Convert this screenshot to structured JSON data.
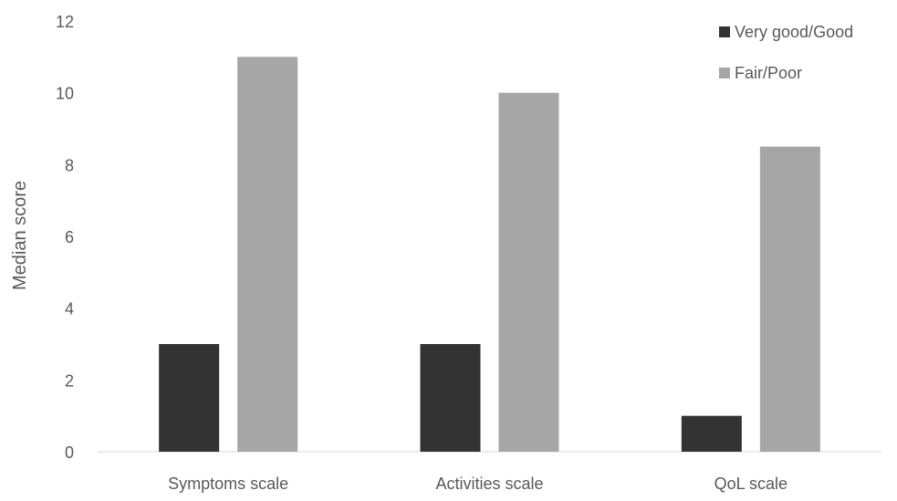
{
  "chart_data": {
    "type": "bar",
    "title": "",
    "xlabel": "",
    "ylabel": "Median score",
    "categories": [
      "Symptoms scale",
      "Activities scale",
      "QoL scale"
    ],
    "series": [
      {
        "name": "Very good/Good",
        "color": "#333333",
        "values": [
          3,
          3,
          1
        ]
      },
      {
        "name": "Fair/Poor",
        "color": "#a6a6a6",
        "values": [
          11,
          10,
          8.5
        ]
      }
    ],
    "ylim": [
      0,
      12
    ],
    "yticks": [
      0,
      2,
      4,
      6,
      8,
      10,
      12
    ],
    "grid": false,
    "legend_position": "top-right"
  }
}
